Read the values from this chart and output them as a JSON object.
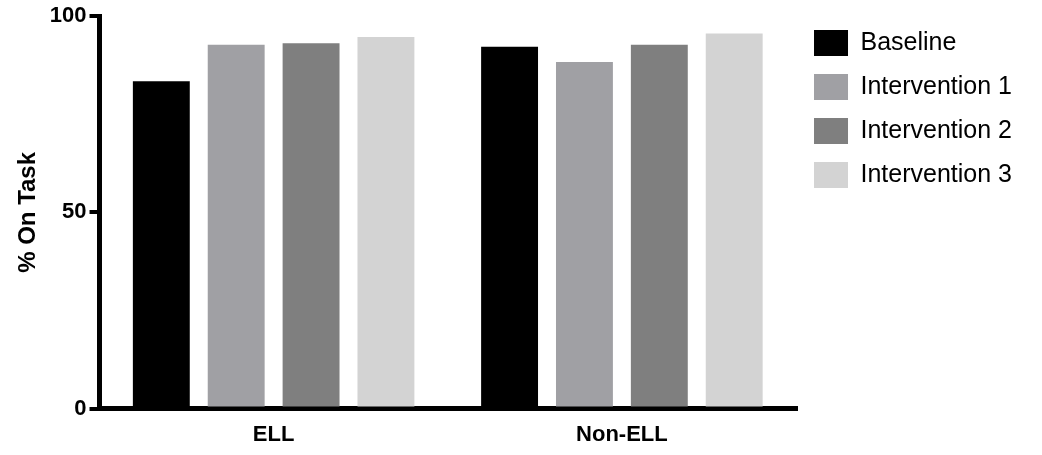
{
  "chart_data": {
    "type": "bar",
    "ylabel": "% On Task",
    "categories": [
      "ELL",
      "Non-ELL"
    ],
    "series": [
      {
        "name": "Baseline",
        "color": "#000000",
        "values": [
          83.4,
          92.2
        ]
      },
      {
        "name": "Intervention 1",
        "color": "#a0a0a4",
        "values": [
          92.7,
          88.3
        ]
      },
      {
        "name": "Intervention 2",
        "color": "#7f7f7f",
        "values": [
          93.1,
          92.7
        ]
      },
      {
        "name": "Intervention 3",
        "color": "#d3d3d3",
        "values": [
          94.7,
          95.6
        ]
      }
    ],
    "ylim": [
      0,
      100
    ],
    "yticks": [
      0,
      50,
      100
    ],
    "grid": false,
    "legend": "right"
  }
}
